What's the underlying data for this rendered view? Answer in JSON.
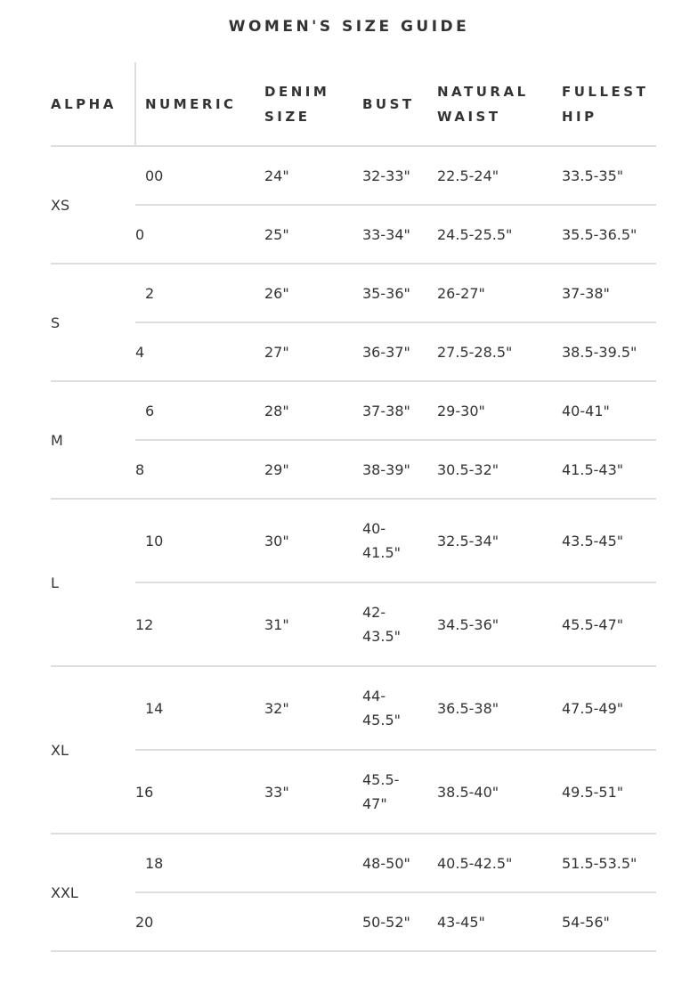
{
  "title": "WOMEN'S SIZE GUIDE",
  "headers": [
    "ALPHA",
    "NUMERIC",
    "DENIM SIZE",
    "BUST",
    "NATURAL WAIST",
    "FULLEST HIP"
  ],
  "groups": [
    {
      "alpha": "XS",
      "rows": [
        [
          "00",
          "24\"",
          "32-33\"",
          "22.5-24\"",
          "33.5-35\""
        ],
        [
          "0",
          "25\"",
          "33-34\"",
          "24.5-25.5\"",
          "35.5-36.5\""
        ]
      ]
    },
    {
      "alpha": "S",
      "rows": [
        [
          "2",
          "26\"",
          "35-36\"",
          "26-27\"",
          "37-38\""
        ],
        [
          "4",
          "27\"",
          "36-37\"",
          "27.5-28.5\"",
          "38.5-39.5\""
        ]
      ]
    },
    {
      "alpha": "M",
      "rows": [
        [
          "6",
          "28\"",
          "37-38\"",
          "29-30\"",
          "40-41\""
        ],
        [
          "8",
          "29\"",
          "38-39\"",
          "30.5-32\"",
          "41.5-43\""
        ]
      ]
    },
    {
      "alpha": "L",
      "rows": [
        [
          "10",
          "30\"",
          "40-41.5\"",
          "32.5-34\"",
          "43.5-45\""
        ],
        [
          "12",
          "31\"",
          "42-43.5\"",
          "34.5-36\"",
          "45.5-47\""
        ]
      ]
    },
    {
      "alpha": "XL",
      "rows": [
        [
          "14",
          "32\"",
          "44-45.5\"",
          "36.5-38\"",
          "47.5-49\""
        ],
        [
          "16",
          "33\"",
          "45.5-47\"",
          "38.5-40\"",
          "49.5-51\""
        ]
      ]
    },
    {
      "alpha": "XXL",
      "rows": [
        [
          "18",
          "",
          "48-50\"",
          "40.5-42.5\"",
          "51.5-53.5\""
        ],
        [
          "20",
          "",
          "50-52\"",
          "43-45\"",
          "54-56\""
        ]
      ]
    }
  ]
}
